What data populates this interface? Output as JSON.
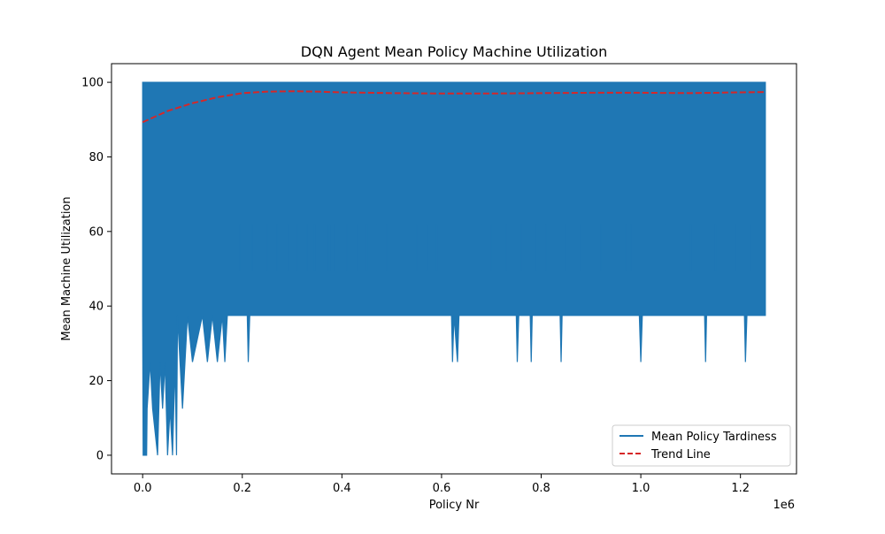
{
  "chart_data": {
    "type": "line",
    "title": "DQN Agent Mean Policy Machine Utilization",
    "xlabel": "Policy Nr",
    "ylabel": "Mean Machine Utilization",
    "x_offset_text": "1e6",
    "xlim": [
      -0.0625,
      1.3125
    ],
    "ylim": [
      -5,
      105
    ],
    "x_ticks": [
      0.0,
      0.2,
      0.4,
      0.6,
      0.8,
      1.0,
      1.2
    ],
    "x_tick_labels": [
      "0.0",
      "0.2",
      "0.4",
      "0.6",
      "0.8",
      "1.0",
      "1.2"
    ],
    "y_ticks": [
      0,
      20,
      40,
      60,
      80,
      100
    ],
    "y_tick_labels": [
      "0",
      "20",
      "40",
      "60",
      "80",
      "100"
    ],
    "legend_position": "lower-right",
    "series": [
      {
        "name": "Mean Policy Tardiness",
        "color": "#1f77b4",
        "style": "solid",
        "x_range": [
          0.0,
          1.25
        ],
        "max": 100,
        "min_envelope": [
          [
            0.0,
            37.5
          ],
          [
            0.001,
            0
          ],
          [
            0.004,
            0
          ],
          [
            0.008,
            0
          ],
          [
            0.009,
            12.5
          ],
          [
            0.015,
            25
          ],
          [
            0.02,
            12.5
          ],
          [
            0.03,
            0
          ],
          [
            0.035,
            25
          ],
          [
            0.04,
            12.5
          ],
          [
            0.045,
            25
          ],
          [
            0.05,
            0
          ],
          [
            0.055,
            12.5
          ],
          [
            0.06,
            0
          ],
          [
            0.065,
            25
          ],
          [
            0.068,
            0
          ],
          [
            0.07,
            37.5
          ],
          [
            0.075,
            25
          ],
          [
            0.08,
            12.5
          ],
          [
            0.085,
            25
          ],
          [
            0.09,
            37.5
          ],
          [
            0.1,
            25
          ],
          [
            0.12,
            37.5
          ],
          [
            0.13,
            25
          ],
          [
            0.14,
            37.5
          ],
          [
            0.15,
            25
          ],
          [
            0.16,
            37.5
          ],
          [
            0.165,
            25
          ],
          [
            0.17,
            37.5
          ],
          [
            0.21,
            37.5
          ],
          [
            0.212,
            25
          ],
          [
            0.215,
            37.5
          ],
          [
            0.62,
            37.5
          ],
          [
            0.622,
            25
          ],
          [
            0.625,
            37.5
          ],
          [
            0.632,
            25
          ],
          [
            0.635,
            37.5
          ],
          [
            0.75,
            37.5
          ],
          [
            0.752,
            25
          ],
          [
            0.755,
            37.5
          ],
          [
            0.778,
            37.5
          ],
          [
            0.78,
            25
          ],
          [
            0.782,
            37.5
          ],
          [
            0.838,
            37.5
          ],
          [
            0.84,
            25
          ],
          [
            0.842,
            37.5
          ],
          [
            0.997,
            37.5
          ],
          [
            1.0,
            25
          ],
          [
            1.003,
            37.5
          ],
          [
            1.128,
            37.5
          ],
          [
            1.13,
            25
          ],
          [
            1.132,
            37.5
          ],
          [
            1.208,
            37.5
          ],
          [
            1.21,
            25
          ],
          [
            1.213,
            37.5
          ],
          [
            1.25,
            37.5
          ]
        ],
        "dense_band": [
          49.5,
          100
        ],
        "spikes_to_62": [
          0.195,
          0.22,
          0.25,
          0.27,
          0.29,
          0.31,
          0.33,
          0.345,
          0.37,
          0.375,
          0.385,
          0.41,
          0.43,
          0.45,
          0.47,
          0.49,
          0.55,
          0.57,
          0.59,
          0.68,
          0.7,
          0.73,
          0.76,
          0.79,
          0.81,
          0.85,
          0.88,
          0.92,
          0.97,
          0.98,
          1.05,
          1.1,
          1.15,
          1.19,
          1.22
        ]
      },
      {
        "name": "Trend Line",
        "color": "#d62728",
        "style": "dashed",
        "x": [
          0.0,
          0.05,
          0.1,
          0.15,
          0.2,
          0.25,
          0.3,
          0.35,
          0.4,
          0.5,
          0.6,
          0.7,
          0.8,
          0.9,
          1.0,
          1.1,
          1.2,
          1.25
        ],
        "y": [
          89.3,
          92.3,
          94.4,
          96.0,
          97.1,
          97.5,
          97.6,
          97.5,
          97.3,
          97.1,
          97.0,
          97.0,
          97.1,
          97.2,
          97.2,
          97.1,
          97.3,
          97.4
        ]
      }
    ]
  }
}
